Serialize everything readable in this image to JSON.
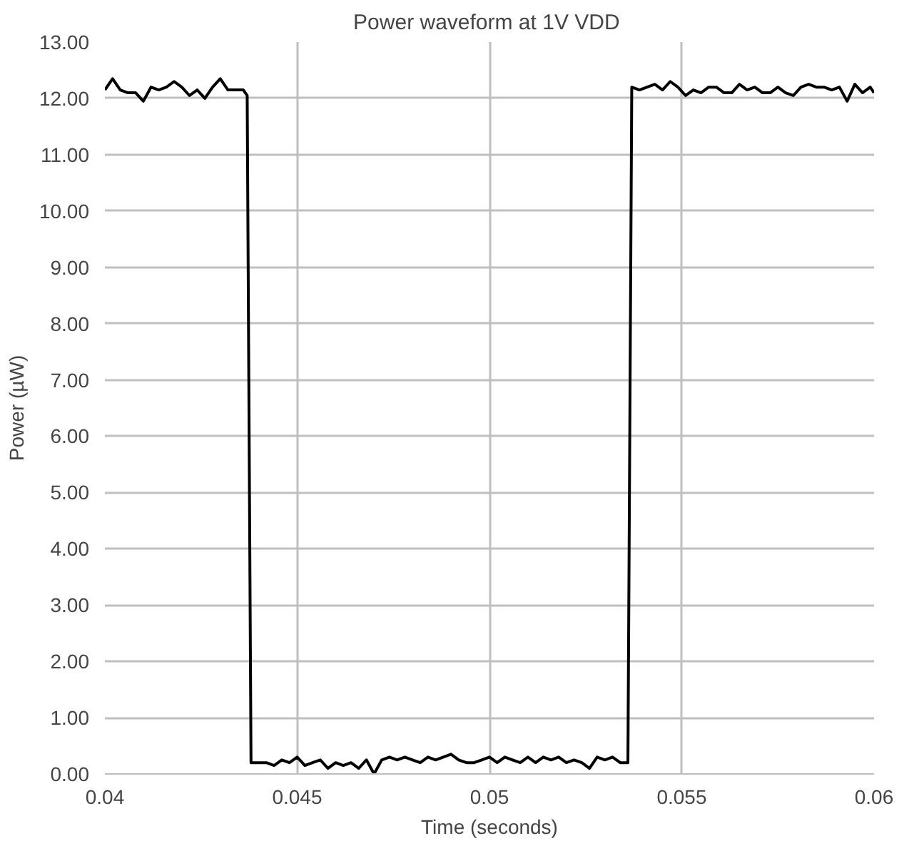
{
  "chart_data": {
    "type": "line",
    "title": "Power waveform at 1V  VDD",
    "xlabel": "Time (seconds)",
    "ylabel": "Power (µW)",
    "xlim": [
      0.04,
      0.06
    ],
    "xticks": [
      0.04,
      0.045,
      0.05,
      0.055,
      0.06
    ],
    "ylim": [
      0,
      13
    ],
    "yticks": [
      {
        "value": 0,
        "label": "0.00"
      },
      {
        "value": 1,
        "label": "1.00"
      },
      {
        "value": 2,
        "label": "2.00"
      },
      {
        "value": 3,
        "label": "3.00"
      },
      {
        "value": 4,
        "label": "4.00"
      },
      {
        "value": 5,
        "label": "5.00"
      },
      {
        "value": 6,
        "label": "6.00"
      },
      {
        "value": 7,
        "label": "7.00"
      },
      {
        "value": 8,
        "label": "8.00"
      },
      {
        "value": 9,
        "label": "9.00"
      },
      {
        "value": 10,
        "label": "10.00"
      },
      {
        "value": 11,
        "label": "11.00"
      },
      {
        "value": 12,
        "label": "12.00"
      },
      {
        "value": 13,
        "label": "13.00"
      }
    ],
    "grid": true,
    "marker": "none",
    "line_style": "solid",
    "x": [
      0.04,
      0.0402,
      0.0404,
      0.0406,
      0.0408,
      0.041,
      0.0412,
      0.0414,
      0.0416,
      0.0418,
      0.042,
      0.0422,
      0.0424,
      0.0426,
      0.0428,
      0.043,
      0.0432,
      0.0434,
      0.0436,
      0.0437,
      0.0438,
      0.044,
      0.0442,
      0.0444,
      0.0446,
      0.0448,
      0.045,
      0.0452,
      0.0454,
      0.0456,
      0.0458,
      0.046,
      0.0462,
      0.0464,
      0.0466,
      0.0468,
      0.047,
      0.0472,
      0.0474,
      0.0476,
      0.0478,
      0.048,
      0.0482,
      0.0484,
      0.0486,
      0.0488,
      0.049,
      0.0492,
      0.0494,
      0.0496,
      0.0498,
      0.05,
      0.0502,
      0.0504,
      0.0506,
      0.0508,
      0.051,
      0.0512,
      0.0514,
      0.0516,
      0.0518,
      0.052,
      0.0522,
      0.0524,
      0.0526,
      0.0528,
      0.053,
      0.0532,
      0.0534,
      0.0536,
      0.0537,
      0.0539,
      0.0541,
      0.0543,
      0.0545,
      0.0547,
      0.0549,
      0.0551,
      0.0553,
      0.0555,
      0.0557,
      0.0559,
      0.0561,
      0.0563,
      0.0565,
      0.0567,
      0.0569,
      0.0571,
      0.0573,
      0.0575,
      0.0577,
      0.0579,
      0.0581,
      0.0583,
      0.0585,
      0.0587,
      0.0589,
      0.0591,
      0.0593,
      0.0595,
      0.0597,
      0.0599,
      0.06
    ],
    "series": [
      {
        "color": "#000000",
        "values": [
          12.15,
          12.35,
          12.15,
          12.1,
          12.1,
          11.95,
          12.2,
          12.15,
          12.2,
          12.3,
          12.2,
          12.05,
          12.15,
          12.0,
          12.2,
          12.35,
          12.15,
          12.15,
          12.15,
          12.05,
          0.2,
          0.2,
          0.2,
          0.15,
          0.25,
          0.2,
          0.3,
          0.15,
          0.2,
          0.25,
          0.1,
          0.2,
          0.15,
          0.2,
          0.1,
          0.25,
          0.0,
          0.25,
          0.3,
          0.25,
          0.3,
          0.25,
          0.2,
          0.3,
          0.25,
          0.3,
          0.35,
          0.25,
          0.2,
          0.2,
          0.25,
          0.3,
          0.2,
          0.3,
          0.25,
          0.2,
          0.3,
          0.2,
          0.3,
          0.25,
          0.3,
          0.2,
          0.25,
          0.2,
          0.1,
          0.3,
          0.25,
          0.3,
          0.2,
          0.2,
          12.2,
          12.15,
          12.2,
          12.25,
          12.15,
          12.3,
          12.2,
          12.05,
          12.15,
          12.1,
          12.2,
          12.2,
          12.1,
          12.1,
          12.25,
          12.15,
          12.2,
          12.1,
          12.1,
          12.2,
          12.1,
          12.05,
          12.2,
          12.25,
          12.2,
          12.2,
          12.15,
          12.2,
          11.95,
          12.25,
          12.1,
          12.2,
          12.1
        ]
      }
    ]
  }
}
